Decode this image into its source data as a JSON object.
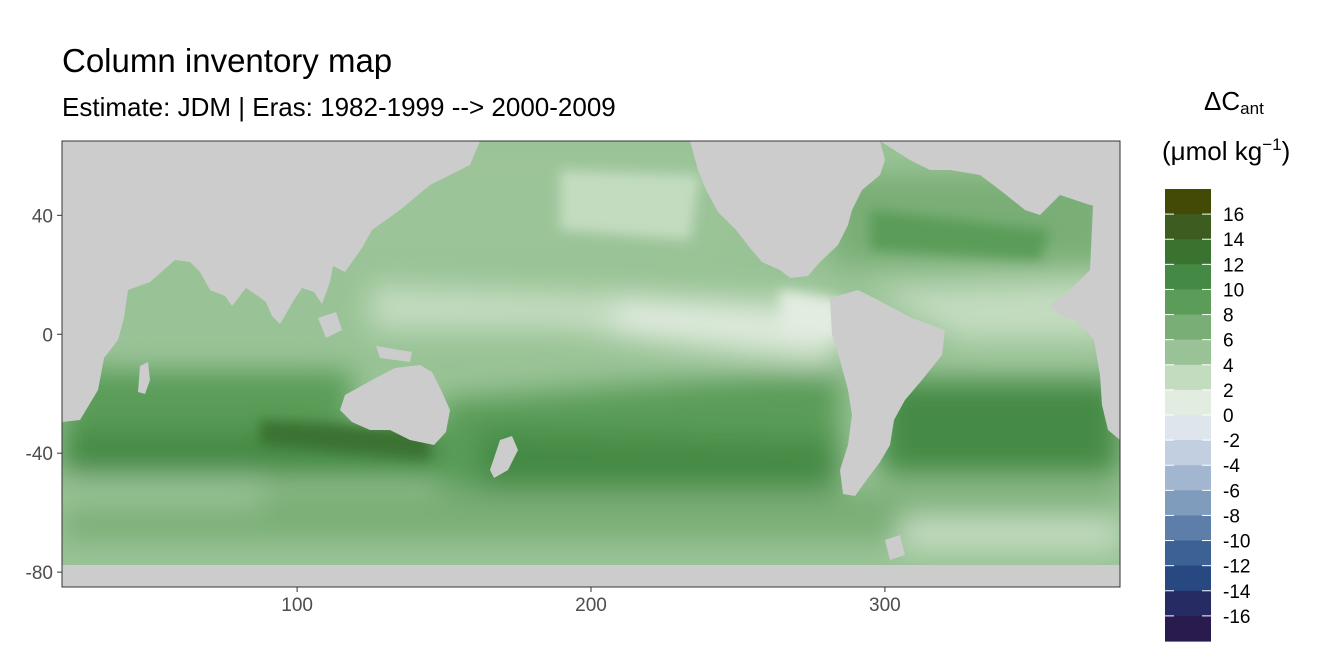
{
  "chart_data": {
    "type": "heatmap",
    "title": "Column inventory map",
    "subtitle": "Estimate: JDM  | Eras: 1982-1999 --> 2000-2009",
    "legend": {
      "title_line1_main": "ΔC",
      "title_line1_sub": "ant",
      "title_line2_main": "(μmol kg",
      "title_line2_sup": "−1",
      "title_line2_end": ")",
      "placement": "right",
      "breaks": [
        16,
        14,
        12,
        10,
        8,
        6,
        4,
        2,
        0,
        -2,
        -4,
        -6,
        -8,
        -10,
        -12,
        -14,
        -16
      ],
      "colors": [
        "#424a06",
        "#3d5c20",
        "#3a7230",
        "#458a44",
        "#5a9c58",
        "#79ae76",
        "#99c396",
        "#c3dcc0",
        "#e2ece0",
        "#dfe5ec",
        "#c1cfe0",
        "#a2b6d0",
        "#7f9cbd",
        "#5c7ea8",
        "#3c6194",
        "#284882",
        "#272b64",
        "#2a1b4e"
      ]
    },
    "xlim": [
      20,
      380
    ],
    "ylim": [
      -85,
      65
    ],
    "x_ticks": [
      100,
      200,
      300
    ],
    "y_ticks": [
      40,
      0,
      -40,
      -80
    ],
    "grid": false,
    "land_color": "#cccccc",
    "approximate_regions": [
      {
        "name": "Southern Indian Ocean band",
        "x": [
          20,
          160
        ],
        "y": [
          -50,
          -25
        ],
        "value": 12
      },
      {
        "name": "Southern Ocean south of Australia",
        "x": [
          80,
          145
        ],
        "y": [
          -45,
          -30
        ],
        "value": 14
      },
      {
        "name": "South Pacific subtropics",
        "x": [
          160,
          270
        ],
        "y": [
          -50,
          -20
        ],
        "value": 9
      },
      {
        "name": "South Atlantic band",
        "x": [
          300,
          380
        ],
        "y": [
          -45,
          -25
        ],
        "value": 11
      },
      {
        "name": "Equatorial Pacific",
        "x": [
          130,
          280
        ],
        "y": [
          -10,
          15
        ],
        "value": 3
      },
      {
        "name": "North Pacific",
        "x": [
          120,
          240
        ],
        "y": [
          20,
          55
        ],
        "value": 6
      },
      {
        "name": "North Atlantic",
        "x": [
          280,
          370
        ],
        "y": [
          20,
          60
        ],
        "value": 8
      },
      {
        "name": "High-latitude Southern Ocean",
        "x": [
          20,
          380
        ],
        "y": [
          -70,
          -55
        ],
        "value": 5
      }
    ]
  }
}
